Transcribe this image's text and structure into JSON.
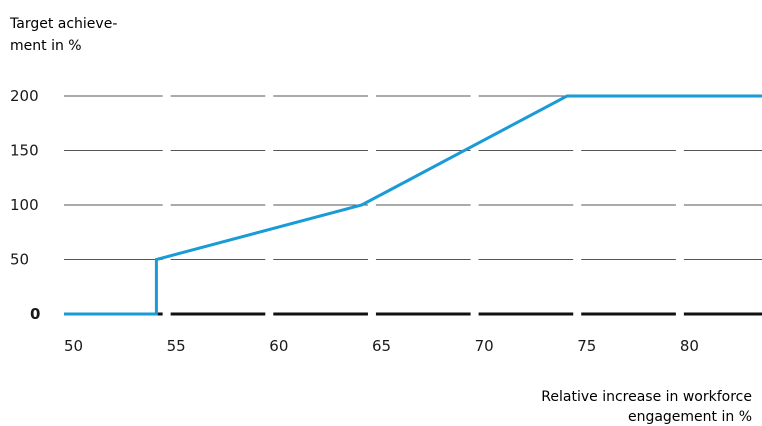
{
  "chart_data": {
    "type": "line",
    "ylabel": [
      "Target achieve-",
      "ment in %"
    ],
    "xlabel": [
      "Relative increase in workforce",
      "engagement in %"
    ],
    "x_ticks": [
      50,
      55,
      60,
      65,
      70,
      75,
      80
    ],
    "y_ticks": [
      0,
      50,
      100,
      150,
      200
    ],
    "xlim": [
      50,
      84
    ],
    "ylim": [
      0,
      200
    ],
    "grid": true,
    "colors": {
      "line": "#1a9bd7",
      "grid": "#555555",
      "baseline": "#111111"
    },
    "series": [
      {
        "x": [
          50,
          54.5,
          54.5,
          64.5,
          74.5,
          84
        ],
        "y": [
          0,
          0,
          50,
          100,
          200,
          200
        ]
      }
    ]
  }
}
